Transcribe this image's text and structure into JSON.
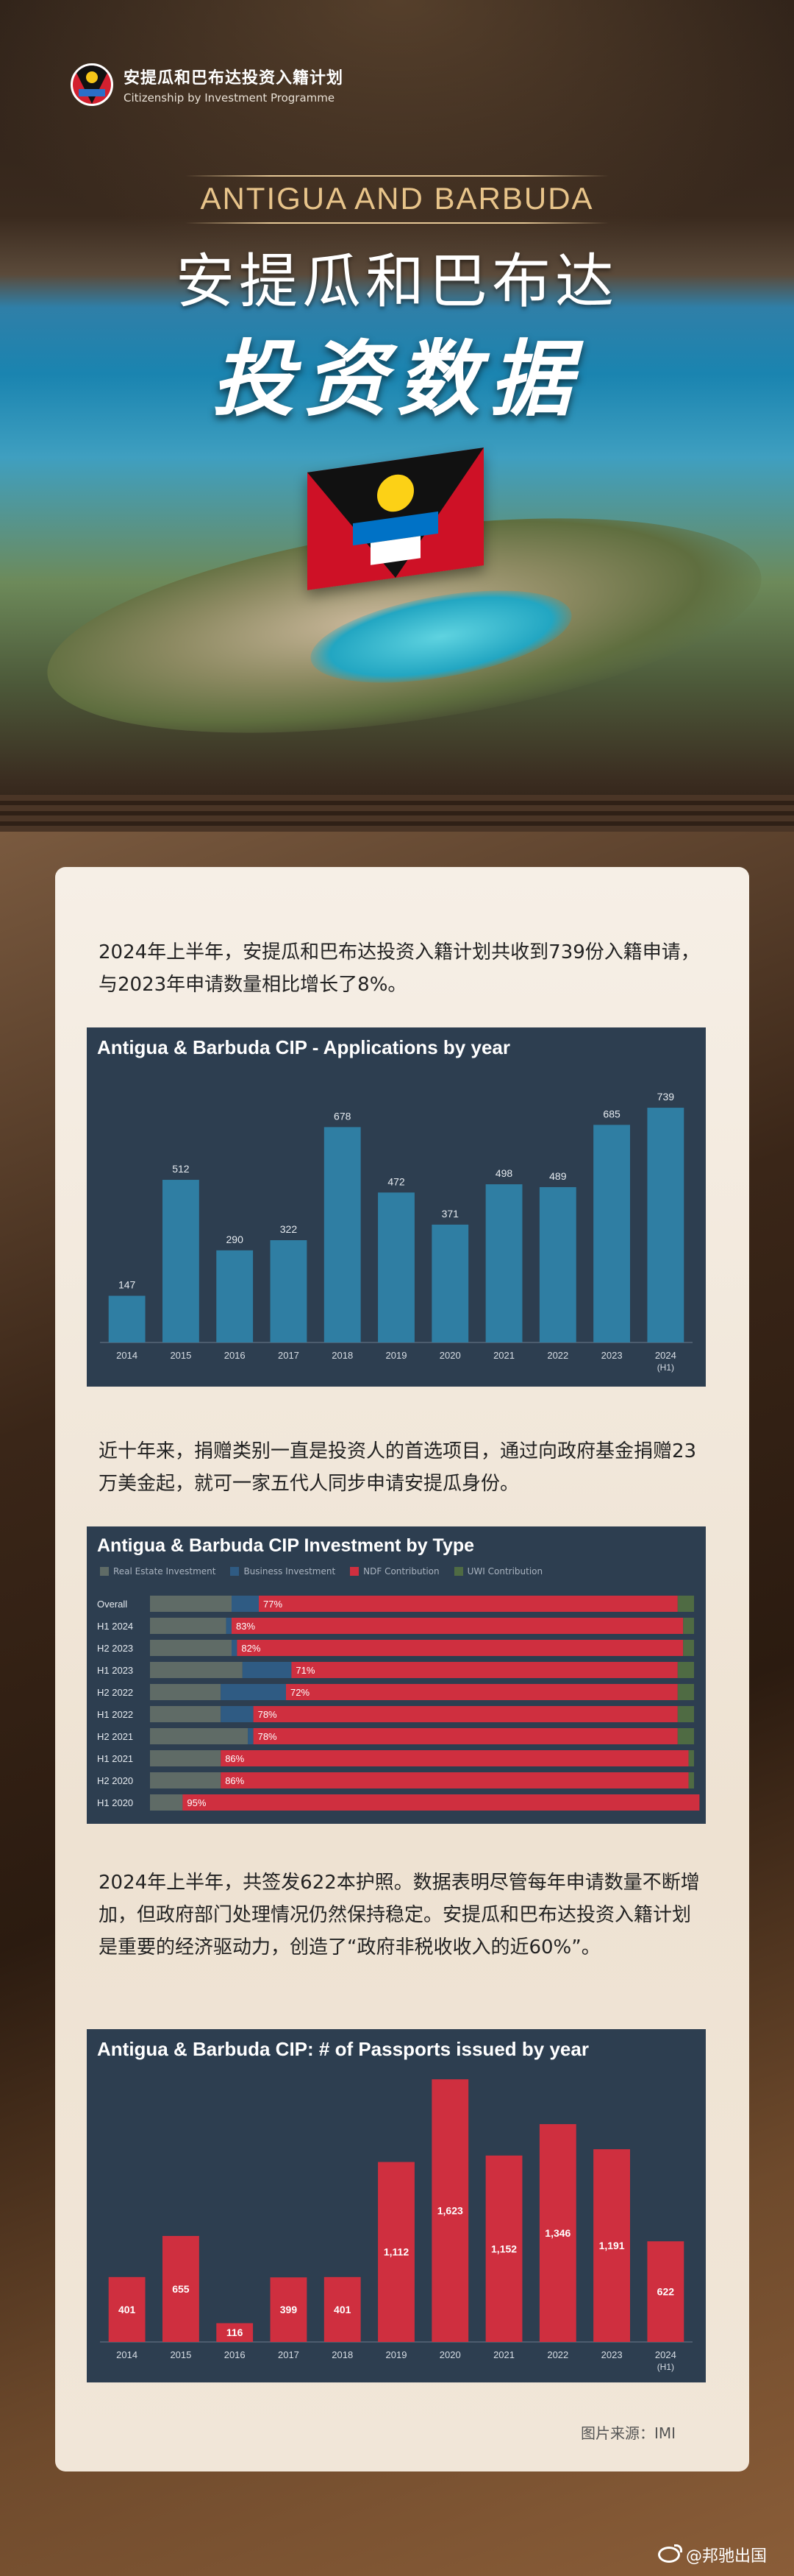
{
  "header": {
    "logo_cn": "安提瓜和巴布达投资入籍计划",
    "logo_en": "Citizenship by Investment Programme",
    "title_en": "ANTIGUA AND BARBUDA",
    "title_cn": "安提瓜和巴布达",
    "title_cn2": "投资数据"
  },
  "paragraphs": {
    "p1": "2024年上半年，安提瓜和巴布达投资入籍计划共收到739份入籍申请，与2023年申请数量相比增长了8%。",
    "p2": "近十年来，捐赠类别一直是投资人的首选项目，通过向政府基金捐赠23万美金起，就可一家五代人同步申请安提瓜身份。",
    "p3": "2024年上半年，共签发622本护照。数据表明尽管每年申请数量不断增加，但政府部门处理情况仍然保持稳定。安提瓜和巴布达投资入籍计划是重要的经济驱动力，创造了“政府非税收收入的近60%”。"
  },
  "footer": {
    "source": "图片来源：IMI",
    "watermark": "@邦驰出国"
  },
  "colors": {
    "chart_bg": "#2d3e50",
    "bar_blue": "#2f7ea3",
    "bar_red": "#cf2f3f",
    "real_estate": "#5f6b66",
    "business": "#2f5b83",
    "ndf": "#cf2f3f",
    "uwi": "#4f6b43"
  },
  "chart_data": [
    {
      "type": "bar",
      "title": "Antigua & Barbuda CIP - Applications by year",
      "categories": [
        "2014",
        "2015",
        "2016",
        "2017",
        "2018",
        "2019",
        "2020",
        "2021",
        "2022",
        "2023",
        "2024 (H1)"
      ],
      "values": [
        147,
        512,
        290,
        322,
        678,
        472,
        371,
        498,
        489,
        685,
        739
      ],
      "ylim": [
        0,
        760
      ]
    },
    {
      "type": "bar",
      "stacked": "horizontal-100%",
      "title": "Antigua & Barbuda CIP Investment by Type",
      "legend": [
        "Real Estate Investment",
        "Business Investment",
        "NDF Contribution",
        "UWI Contribution"
      ],
      "categories": [
        "Overall",
        "H1 2024",
        "H2 2023",
        "H1 2023",
        "H2 2022",
        "H1 2022",
        "H2 2021",
        "H1 2021",
        "H2 2020",
        "H1 2020"
      ],
      "series": [
        {
          "name": "Real Estate Investment",
          "values": [
            15,
            14,
            15,
            17,
            13,
            13,
            18,
            13,
            13,
            6
          ]
        },
        {
          "name": "Business Investment",
          "values": [
            5,
            1,
            1,
            9,
            12,
            6,
            1,
            0,
            0,
            0
          ]
        },
        {
          "name": "NDF Contribution",
          "values": [
            77,
            83,
            82,
            71,
            72,
            78,
            78,
            86,
            86,
            95
          ]
        },
        {
          "name": "UWI Contribution",
          "values": [
            3,
            2,
            2,
            3,
            3,
            3,
            3,
            1,
            1,
            0
          ]
        }
      ],
      "labels": [
        "77%",
        "83%",
        "82%",
        "71%",
        "72%",
        "78%",
        "78%",
        "86%",
        "86%",
        "95%"
      ]
    },
    {
      "type": "bar",
      "title": "Antigua & Barbuda CIP: # of Passports issued by year",
      "categories": [
        "2014",
        "2015",
        "2016",
        "2017",
        "2018",
        "2019",
        "2020",
        "2021",
        "2022",
        "2023",
        "2024 (H1)"
      ],
      "values": [
        401,
        655,
        116,
        399,
        401,
        1112,
        1623,
        1152,
        1346,
        1191,
        622
      ],
      "labels": [
        "401",
        "655",
        "116",
        "399",
        "401",
        "1,112",
        "1,623",
        "1,152",
        "1,346",
        "1,191",
        "622"
      ],
      "ylim": [
        0,
        1660
      ]
    }
  ]
}
